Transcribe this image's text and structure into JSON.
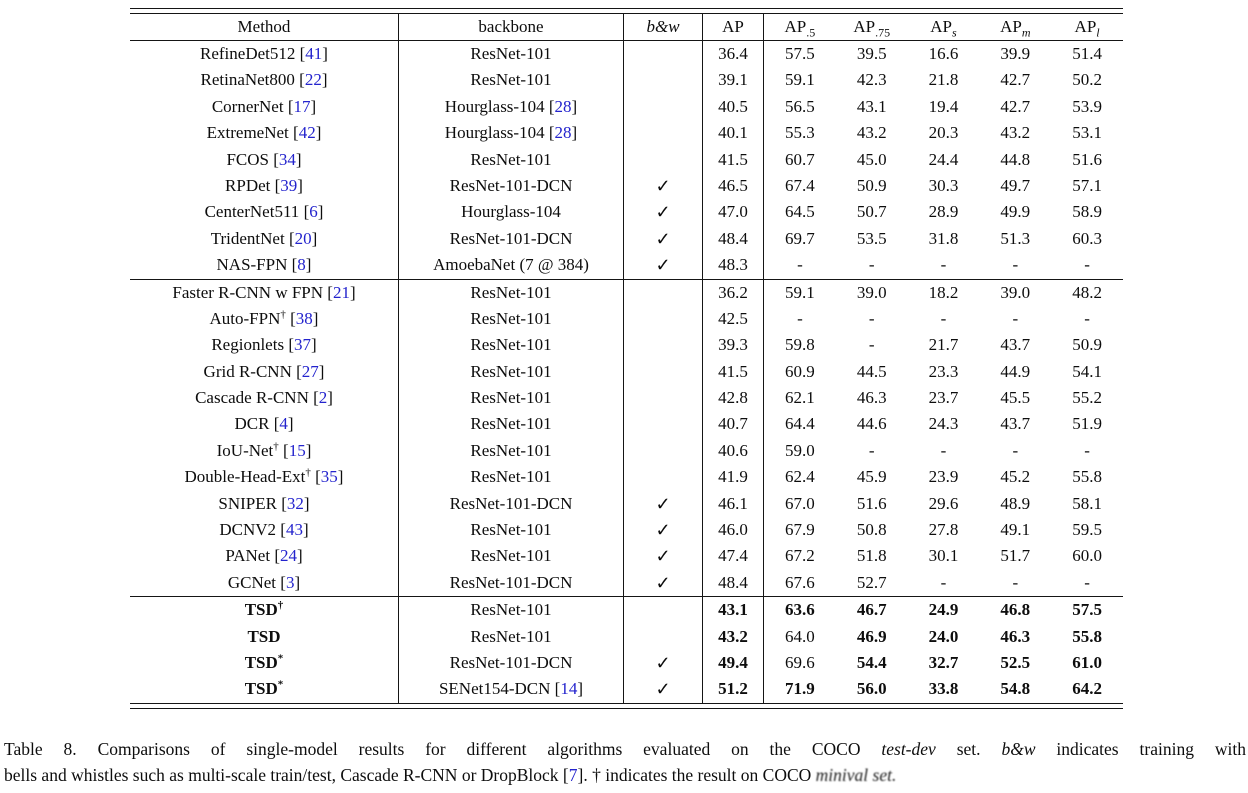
{
  "colors": {
    "citation": "#2323cd"
  },
  "table": {
    "check_mark": "✓",
    "header": {
      "method": "Method",
      "backbone": "backbone",
      "bw": "b&w",
      "ap": "AP",
      "sub50": ".5",
      "sub75": ".75",
      "subs": "s",
      "subm": "m",
      "subl": "l"
    },
    "groups": [
      {
        "rows": [
          {
            "m": "RefineDet512",
            "mc": "41",
            "b": "ResNet-101",
            "bc": "",
            "chk": false,
            "v": [
              "36.4",
              "57.5",
              "39.5",
              "16.6",
              "39.9",
              "51.4"
            ]
          },
          {
            "m": "RetinaNet800",
            "mc": "22",
            "b": "ResNet-101",
            "bc": "",
            "chk": false,
            "v": [
              "39.1",
              "59.1",
              "42.3",
              "21.8",
              "42.7",
              "50.2"
            ]
          },
          {
            "m": "CornerNet",
            "mc": "17",
            "b": "Hourglass-104",
            "bc": "28",
            "chk": false,
            "v": [
              "40.5",
              "56.5",
              "43.1",
              "19.4",
              "42.7",
              "53.9"
            ]
          },
          {
            "m": "ExtremeNet",
            "mc": "42",
            "b": "Hourglass-104",
            "bc": "28",
            "chk": false,
            "v": [
              "40.1",
              "55.3",
              "43.2",
              "20.3",
              "43.2",
              "53.1"
            ]
          },
          {
            "m": "FCOS",
            "mc": "34",
            "b": "ResNet-101",
            "bc": "",
            "chk": false,
            "v": [
              "41.5",
              "60.7",
              "45.0",
              "24.4",
              "44.8",
              "51.6"
            ]
          },
          {
            "m": "RPDet",
            "mc": "39",
            "b": "ResNet-101-DCN",
            "bc": "",
            "chk": true,
            "v": [
              "46.5",
              "67.4",
              "50.9",
              "30.3",
              "49.7",
              "57.1"
            ]
          },
          {
            "m": "CenterNet511",
            "mc": "6",
            "b": "Hourglass-104",
            "bc": "",
            "chk": true,
            "v": [
              "47.0",
              "64.5",
              "50.7",
              "28.9",
              "49.9",
              "58.9"
            ]
          },
          {
            "m": "TridentNet",
            "mc": "20",
            "b": "ResNet-101-DCN",
            "bc": "",
            "chk": true,
            "v": [
              "48.4",
              "69.7",
              "53.5",
              "31.8",
              "51.3",
              "60.3"
            ]
          },
          {
            "m": "NAS-FPN",
            "mc": "8",
            "b": "AmoebaNet (7 @ 384)",
            "bc": "",
            "chk": true,
            "v": [
              "48.3",
              "-",
              "-",
              "-",
              "-",
              "-"
            ]
          }
        ]
      },
      {
        "rows": [
          {
            "m": "Faster R-CNN w FPN",
            "mc": "21",
            "b": "ResNet-101",
            "bc": "",
            "chk": false,
            "v": [
              "36.2",
              "59.1",
              "39.0",
              "18.2",
              "39.0",
              "48.2"
            ]
          },
          {
            "m": "Auto-FPN",
            "sup": "†",
            "mc": "38",
            "b": "ResNet-101",
            "bc": "",
            "chk": false,
            "v": [
              "42.5",
              "-",
              "-",
              "-",
              "-",
              "-"
            ]
          },
          {
            "m": "Regionlets",
            "mc": "37",
            "b": "ResNet-101",
            "bc": "",
            "chk": false,
            "v": [
              "39.3",
              "59.8",
              "-",
              "21.7",
              "43.7",
              "50.9"
            ]
          },
          {
            "m": "Grid R-CNN",
            "mc": "27",
            "b": "ResNet-101",
            "bc": "",
            "chk": false,
            "v": [
              "41.5",
              "60.9",
              "44.5",
              "23.3",
              "44.9",
              "54.1"
            ]
          },
          {
            "m": "Cascade R-CNN",
            "mc": "2",
            "b": "ResNet-101",
            "bc": "",
            "chk": false,
            "v": [
              "42.8",
              "62.1",
              "46.3",
              "23.7",
              "45.5",
              "55.2"
            ]
          },
          {
            "m": "DCR",
            "mc": "4",
            "b": "ResNet-101",
            "bc": "",
            "chk": false,
            "v": [
              "40.7",
              "64.4",
              "44.6",
              "24.3",
              "43.7",
              "51.9"
            ]
          },
          {
            "m": "IoU-Net",
            "sup": "†",
            "mc": "15",
            "b": "ResNet-101",
            "bc": "",
            "chk": false,
            "v": [
              "40.6",
              "59.0",
              "-",
              "-",
              "-",
              "-"
            ]
          },
          {
            "m": "Double-Head-Ext",
            "sup": "†",
            "mc": "35",
            "b": "ResNet-101",
            "bc": "",
            "chk": false,
            "v": [
              "41.9",
              "62.4",
              "45.9",
              "23.9",
              "45.2",
              "55.8"
            ]
          },
          {
            "m": "SNIPER",
            "mc": "32",
            "b": "ResNet-101-DCN",
            "bc": "",
            "chk": true,
            "v": [
              "46.1",
              "67.0",
              "51.6",
              "29.6",
              "48.9",
              "58.1"
            ]
          },
          {
            "m": "DCNV2",
            "mc": "43",
            "b": "ResNet-101",
            "bc": "",
            "chk": true,
            "v": [
              "46.0",
              "67.9",
              "50.8",
              "27.8",
              "49.1",
              "59.5"
            ]
          },
          {
            "m": "PANet",
            "mc": "24",
            "b": "ResNet-101",
            "bc": "",
            "chk": true,
            "v": [
              "47.4",
              "67.2",
              "51.8",
              "30.1",
              "51.7",
              "60.0"
            ]
          },
          {
            "m": "GCNet",
            "mc": "3",
            "b": "ResNet-101-DCN",
            "bc": "",
            "chk": true,
            "v": [
              "48.4",
              "67.6",
              "52.7",
              "-",
              "-",
              "-"
            ]
          }
        ]
      },
      {
        "rows": [
          {
            "m": "TSD",
            "sup": "†",
            "mc": "",
            "b": "ResNet-101",
            "bc": "",
            "chk": false,
            "boldm": true,
            "v": [
              "43.1",
              "63.6",
              "46.7",
              "24.9",
              "46.8",
              "57.5"
            ],
            "bv": [
              1,
              1,
              1,
              1,
              1,
              1
            ]
          },
          {
            "m": "TSD",
            "mc": "",
            "b": "ResNet-101",
            "bc": "",
            "chk": false,
            "boldm": true,
            "v": [
              "43.2",
              "64.0",
              "46.9",
              "24.0",
              "46.3",
              "55.8"
            ],
            "bv": [
              1,
              0,
              1,
              1,
              1,
              1
            ]
          },
          {
            "m": "TSD",
            "sup": "*",
            "mc": "",
            "b": "ResNet-101-DCN",
            "bc": "",
            "chk": true,
            "boldm": true,
            "v": [
              "49.4",
              "69.6",
              "54.4",
              "32.7",
              "52.5",
              "61.0"
            ],
            "bv": [
              1,
              0,
              1,
              1,
              1,
              1
            ]
          },
          {
            "m": "TSD",
            "sup": "*",
            "mc": "",
            "b": "SENet154-DCN",
            "bc": "14",
            "chk": true,
            "boldm": true,
            "v": [
              "51.2",
              "71.9",
              "56.0",
              "33.8",
              "54.8",
              "64.2"
            ],
            "bv": [
              1,
              1,
              1,
              1,
              1,
              1
            ]
          }
        ]
      }
    ]
  },
  "caption": {
    "line1_a": "Table 8. Comparisons of single-model results for different algorithms evaluated on the COCO ",
    "line1_testdev": "test-dev",
    "line1_b": " set. ",
    "line1_bw": "b&w",
    "line1_c": " indicates training with",
    "line2_a": "bells and whistles such as multi-scale train/test, Cascade R-CNN or DropBlock [",
    "line2_cite": "7",
    "line2_b": "]. † indicates the result on COCO ",
    "line2_minival": "minival set."
  }
}
